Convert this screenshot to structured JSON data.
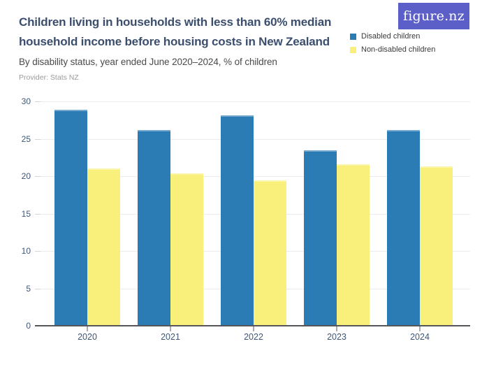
{
  "header": {
    "title": "Children living in households with less than 60% median household income before housing costs in New Zealand",
    "subtitle": "By disability status, year ended June 2020–2024, % of children",
    "provider": "Provider: Stats NZ",
    "logo_text": "figure.nz",
    "logo_bg": "#5b5fc7",
    "title_color": "#3b4e6d"
  },
  "legend": {
    "items": [
      {
        "label": "Disabled children",
        "color": "#2b7cb5"
      },
      {
        "label": "Non-disabled children",
        "color": "#f9f07c"
      }
    ]
  },
  "chart_data": {
    "type": "bar",
    "title": "Children living in households with less than 60% median household income before housing costs in New Zealand",
    "subtitle": "By disability status, year ended June 2020–2024, % of children",
    "categories": [
      "2020",
      "2021",
      "2022",
      "2023",
      "2024"
    ],
    "series": [
      {
        "name": "Disabled children",
        "color": "#2b7cb5",
        "values": [
          28.9,
          26.2,
          28.1,
          23.5,
          26.2
        ]
      },
      {
        "name": "Non-disabled children",
        "color": "#f9f07c",
        "values": [
          21.0,
          20.4,
          19.4,
          21.6,
          21.3
        ]
      }
    ],
    "ylabel": "% of children",
    "ylim": [
      0,
      30
    ],
    "yticks": [
      0,
      5,
      10,
      15,
      20,
      25,
      30
    ],
    "grid": true,
    "legend_position": "top-right"
  }
}
